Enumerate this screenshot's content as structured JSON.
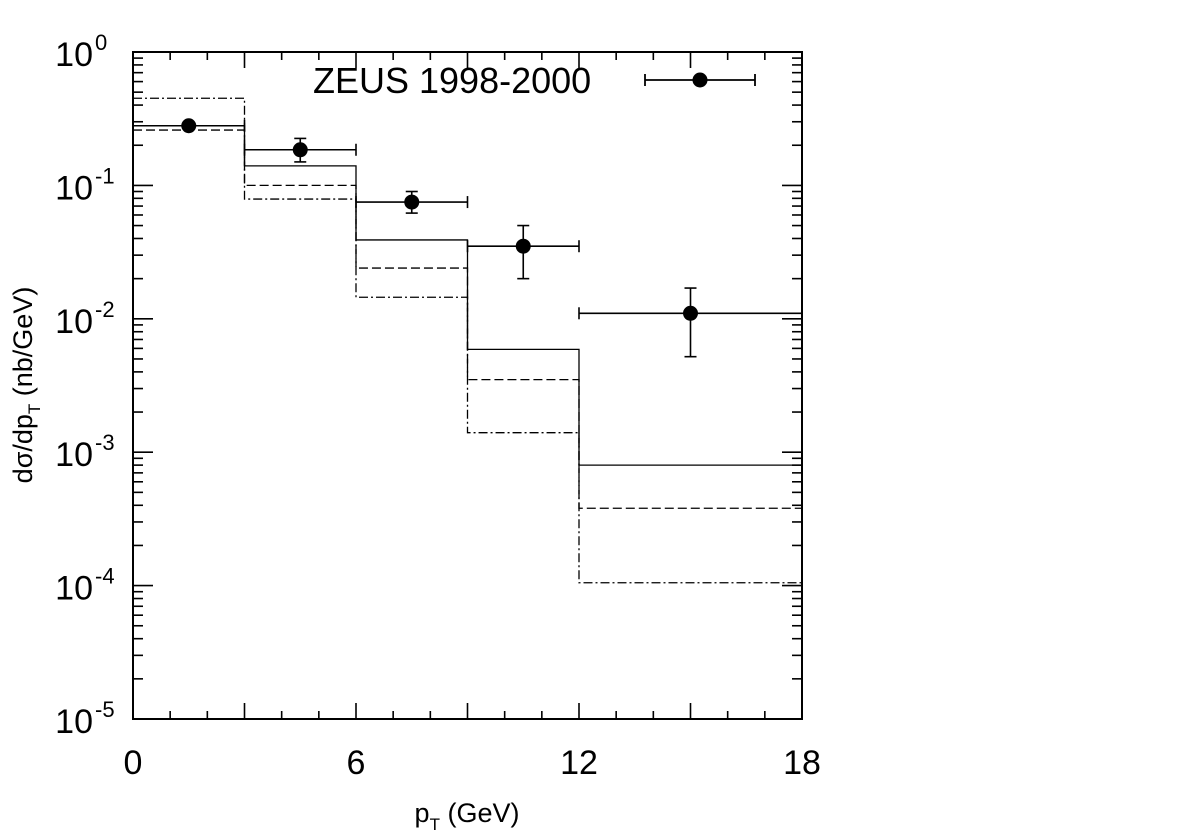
{
  "chart_data": {
    "type": "step",
    "x_scale": "linear",
    "y_scale": "log",
    "xlim": [
      0,
      18
    ],
    "ylim": [
      1e-05,
      1
    ],
    "x_ticks": [
      {
        "value": 0,
        "label": "0"
      },
      {
        "value": 6,
        "label": "6"
      },
      {
        "value": 12,
        "label": "12"
      },
      {
        "value": 18,
        "label": "18"
      }
    ],
    "y_ticks": [
      {
        "value": 1,
        "base": "10",
        "exp": "0"
      },
      {
        "value": 0.1,
        "base": "10",
        "exp": "-1"
      },
      {
        "value": 0.01,
        "base": "10",
        "exp": "-2"
      },
      {
        "value": 0.001,
        "base": "10",
        "exp": "-3"
      },
      {
        "value": 0.0001,
        "base": "10",
        "exp": "-4"
      },
      {
        "value": 1e-05,
        "base": "10",
        "exp": "-5"
      }
    ],
    "xlabel": {
      "main": "p",
      "sub": "T",
      "rest": " (GeV)"
    },
    "ylabel": {
      "main": "dσ/dp",
      "sub": "T",
      "rest": " (nb/GeV)"
    },
    "bin_edges": [
      0,
      3,
      6,
      9,
      12,
      18
    ],
    "series": [
      {
        "name": "ZEUS 1998-2000",
        "kind": "points",
        "x": [
          1.5,
          4.5,
          7.5,
          10.5,
          15
        ],
        "y": [
          0.28,
          0.185,
          0.075,
          0.035,
          0.011
        ],
        "x_err": [
          [
            0,
            3
          ],
          [
            3,
            6
          ],
          [
            6,
            9
          ],
          [
            9,
            12
          ],
          [
            12,
            18
          ]
        ],
        "y_err": [
          [
            0.28,
            0.28
          ],
          [
            0.15,
            0.225
          ],
          [
            0.062,
            0.09
          ],
          [
            0.02,
            0.05
          ],
          [
            0.0052,
            0.017
          ]
        ]
      },
      {
        "kind": "hist",
        "style": "solid",
        "values": [
          0.28,
          0.14,
          0.039,
          0.0059,
          0.0008
        ]
      },
      {
        "kind": "hist",
        "style": "dashed",
        "values": [
          0.26,
          0.1,
          0.024,
          0.0035,
          0.00038
        ]
      },
      {
        "kind": "hist",
        "style": "dashdot",
        "values": [
          0.45,
          0.079,
          0.0145,
          0.0014,
          0.000105
        ]
      }
    ]
  }
}
